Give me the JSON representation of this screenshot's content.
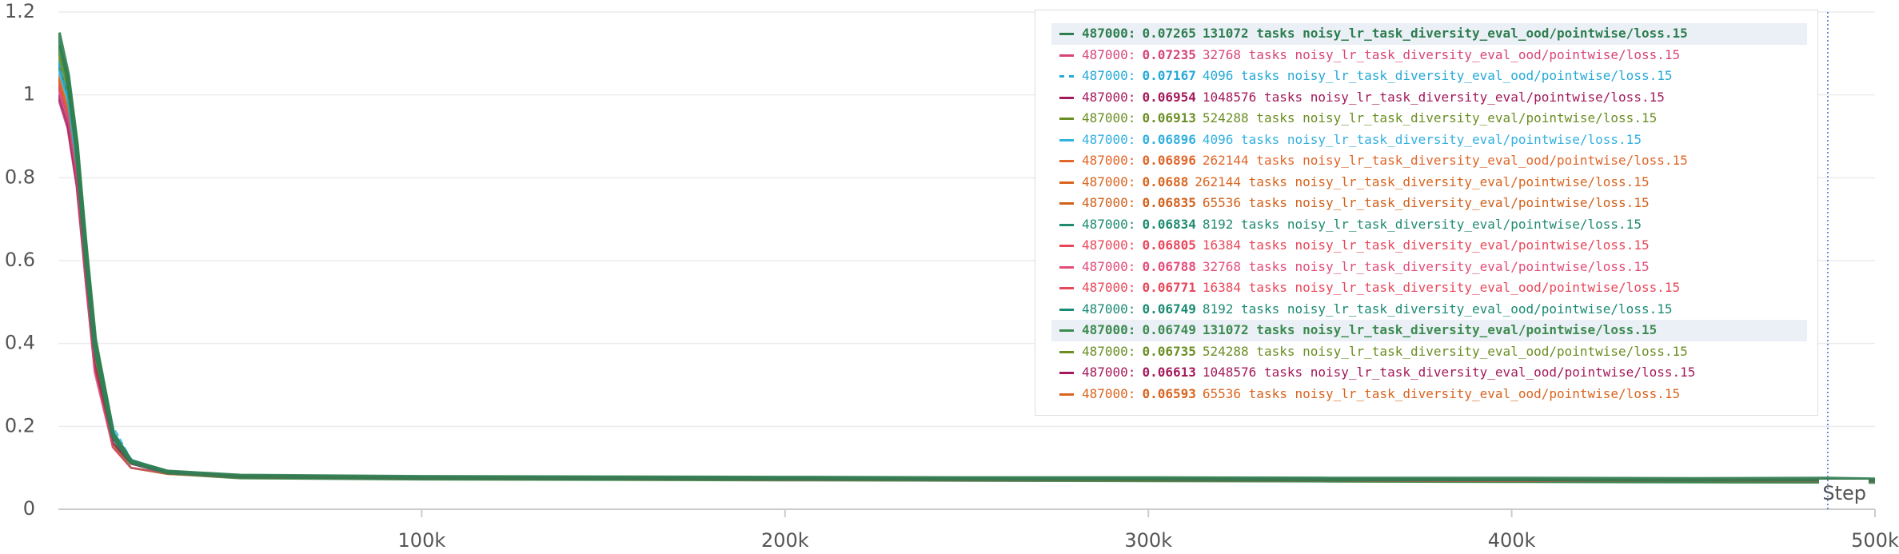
{
  "chart_data": {
    "type": "line",
    "x_label": "Step",
    "x": [
      0,
      2500,
      5000,
      7500,
      10000,
      15000,
      20000,
      30000,
      50000,
      100000,
      150000,
      200000,
      250000,
      300000,
      350000,
      400000,
      450000,
      487000,
      500000
    ],
    "xlim": [
      0,
      500000
    ],
    "xticks": [
      {
        "value": 100000,
        "label": "100k"
      },
      {
        "value": 200000,
        "label": "200k"
      },
      {
        "value": 300000,
        "label": "300k"
      },
      {
        "value": 400000,
        "label": "400k"
      },
      {
        "value": 500000,
        "label": "500k"
      }
    ],
    "ylim": [
      0,
      1.2
    ],
    "yticks": [
      0,
      0.2,
      0.4,
      0.6,
      0.8,
      1,
      1.2
    ],
    "grid": true,
    "legend": "upper right",
    "hover_index": 17,
    "hover_label": "487000:",
    "series": [
      {
        "name": "131072 tasks noisy_lr_task_diversity_eval_ood/pointwise/loss.15",
        "color": "#2e7d4f",
        "highlighted": true,
        "values": [
          1.15,
          1.05,
          0.88,
          0.62,
          0.4,
          0.18,
          0.115,
          0.09,
          0.08,
          0.077,
          0.076,
          0.075,
          0.074,
          0.074,
          0.073,
          0.073,
          0.072,
          0.07265,
          0.071
        ]
      },
      {
        "name": "32768 tasks noisy_lr_task_diversity_eval_ood/pointwise/loss.15",
        "color": "#d6457a",
        "values": [
          1.02,
          0.95,
          0.8,
          0.55,
          0.33,
          0.15,
          0.1,
          0.087,
          0.079,
          0.076,
          0.075,
          0.074,
          0.074,
          0.073,
          0.073,
          0.072,
          0.072,
          0.07235,
          0.071
        ]
      },
      {
        "name": "4096 tasks noisy_lr_task_diversity_eval_ood/pointwise/loss.15",
        "color": "#26a9d6",
        "dashed": true,
        "values": [
          1.08,
          1.0,
          0.84,
          0.6,
          0.38,
          0.2,
          0.12,
          0.09,
          0.08,
          0.077,
          0.075,
          0.074,
          0.073,
          0.073,
          0.072,
          0.072,
          0.071,
          0.07167,
          0.071
        ]
      },
      {
        "name": "1048576 tasks noisy_lr_task_diversity_eval/pointwise/loss.15",
        "color": "#a3195b",
        "values": [
          1.0,
          0.93,
          0.79,
          0.56,
          0.35,
          0.16,
          0.11,
          0.088,
          0.078,
          0.075,
          0.074,
          0.073,
          0.072,
          0.071,
          0.071,
          0.07,
          0.07,
          0.06954,
          0.069
        ]
      },
      {
        "name": "524288 tasks noisy_lr_task_diversity_eval/pointwise/loss.15",
        "color": "#6b8e23",
        "values": [
          1.1,
          1.02,
          0.85,
          0.59,
          0.37,
          0.16,
          0.1,
          0.086,
          0.078,
          0.075,
          0.074,
          0.073,
          0.072,
          0.071,
          0.07,
          0.07,
          0.069,
          0.06913,
          0.069
        ]
      },
      {
        "name": "4096 tasks noisy_lr_task_diversity_eval/pointwise/loss.15",
        "color": "#33b0e0",
        "values": [
          1.06,
          0.99,
          0.83,
          0.6,
          0.39,
          0.19,
          0.12,
          0.09,
          0.079,
          0.076,
          0.074,
          0.073,
          0.072,
          0.071,
          0.07,
          0.07,
          0.069,
          0.06896,
          0.069
        ]
      },
      {
        "name": "262144 tasks noisy_lr_task_diversity_eval_ood/pointwise/loss.15",
        "color": "#e0662a",
        "values": [
          1.03,
          0.96,
          0.81,
          0.57,
          0.36,
          0.15,
          0.1,
          0.086,
          0.078,
          0.075,
          0.074,
          0.072,
          0.072,
          0.071,
          0.07,
          0.069,
          0.069,
          0.06896,
          0.068
        ]
      },
      {
        "name": "262144 tasks noisy_lr_task_diversity_eval/pointwise/loss.15",
        "color": "#d9641e",
        "values": [
          1.04,
          0.97,
          0.82,
          0.57,
          0.35,
          0.15,
          0.1,
          0.085,
          0.077,
          0.074,
          0.073,
          0.072,
          0.071,
          0.07,
          0.07,
          0.069,
          0.069,
          0.0688,
          0.068
        ]
      },
      {
        "name": "65536 tasks noisy_lr_task_diversity_eval/pointwise/loss.15",
        "color": "#d0601a",
        "values": [
          1.05,
          0.97,
          0.82,
          0.58,
          0.36,
          0.15,
          0.1,
          0.086,
          0.077,
          0.074,
          0.073,
          0.072,
          0.071,
          0.07,
          0.069,
          0.069,
          0.068,
          0.06835,
          0.068
        ]
      },
      {
        "name": "8192 tasks noisy_lr_task_diversity_eval/pointwise/loss.15",
        "color": "#1f8a70",
        "values": [
          1.07,
          0.99,
          0.83,
          0.59,
          0.37,
          0.17,
          0.11,
          0.087,
          0.078,
          0.075,
          0.073,
          0.072,
          0.071,
          0.07,
          0.069,
          0.069,
          0.068,
          0.06834,
          0.068
        ]
      },
      {
        "name": "16384 tasks noisy_lr_task_diversity_eval/pointwise/loss.15",
        "color": "#e8475a",
        "values": [
          1.02,
          0.95,
          0.8,
          0.56,
          0.35,
          0.15,
          0.1,
          0.086,
          0.077,
          0.074,
          0.073,
          0.072,
          0.071,
          0.07,
          0.069,
          0.068,
          0.068,
          0.06805,
          0.068
        ]
      },
      {
        "name": "32768 tasks noisy_lr_task_diversity_eval/pointwise/loss.15",
        "color": "#e24d7a",
        "values": [
          1.01,
          0.94,
          0.8,
          0.55,
          0.34,
          0.15,
          0.1,
          0.086,
          0.077,
          0.074,
          0.073,
          0.072,
          0.071,
          0.07,
          0.069,
          0.068,
          0.068,
          0.06788,
          0.067
        ]
      },
      {
        "name": "16384 tasks noisy_lr_task_diversity_eval_ood/pointwise/loss.15",
        "color": "#e8475a",
        "values": [
          1.03,
          0.95,
          0.81,
          0.56,
          0.35,
          0.15,
          0.1,
          0.086,
          0.077,
          0.074,
          0.073,
          0.071,
          0.07,
          0.07,
          0.069,
          0.068,
          0.068,
          0.06771,
          0.067
        ]
      },
      {
        "name": "8192 tasks noisy_lr_task_diversity_eval_ood/pointwise/loss.15",
        "color": "#1a8a74",
        "values": [
          1.08,
          1.0,
          0.84,
          0.6,
          0.38,
          0.17,
          0.11,
          0.087,
          0.078,
          0.075,
          0.073,
          0.072,
          0.071,
          0.07,
          0.069,
          0.068,
          0.067,
          0.06749,
          0.067
        ]
      },
      {
        "name": "131072 tasks noisy_lr_task_diversity_eval/pointwise/loss.15",
        "color": "#3d8b4f",
        "highlighted": true,
        "values": [
          1.12,
          1.04,
          0.87,
          0.63,
          0.41,
          0.18,
          0.115,
          0.089,
          0.078,
          0.075,
          0.074,
          0.073,
          0.072,
          0.071,
          0.07,
          0.069,
          0.068,
          0.06749,
          0.067
        ]
      },
      {
        "name": "524288 tasks noisy_lr_task_diversity_eval_ood/pointwise/loss.15",
        "color": "#6b8e23",
        "values": [
          1.09,
          1.01,
          0.85,
          0.6,
          0.38,
          0.16,
          0.1,
          0.086,
          0.077,
          0.074,
          0.073,
          0.071,
          0.07,
          0.07,
          0.069,
          0.068,
          0.067,
          0.06735,
          0.067
        ]
      },
      {
        "name": "1048576 tasks noisy_lr_task_diversity_eval_ood/pointwise/loss.15",
        "color": "#a3195b",
        "values": [
          0.99,
          0.92,
          0.78,
          0.55,
          0.34,
          0.16,
          0.11,
          0.088,
          0.077,
          0.074,
          0.072,
          0.071,
          0.07,
          0.069,
          0.068,
          0.067,
          0.067,
          0.06613,
          0.066
        ]
      },
      {
        "name": "65536 tasks noisy_lr_task_diversity_eval_ood/pointwise/loss.15",
        "color": "#d9641e",
        "values": [
          1.04,
          0.96,
          0.81,
          0.57,
          0.35,
          0.15,
          0.1,
          0.085,
          0.076,
          0.073,
          0.072,
          0.071,
          0.07,
          0.069,
          0.068,
          0.067,
          0.066,
          0.06593,
          0.066
        ]
      }
    ]
  }
}
